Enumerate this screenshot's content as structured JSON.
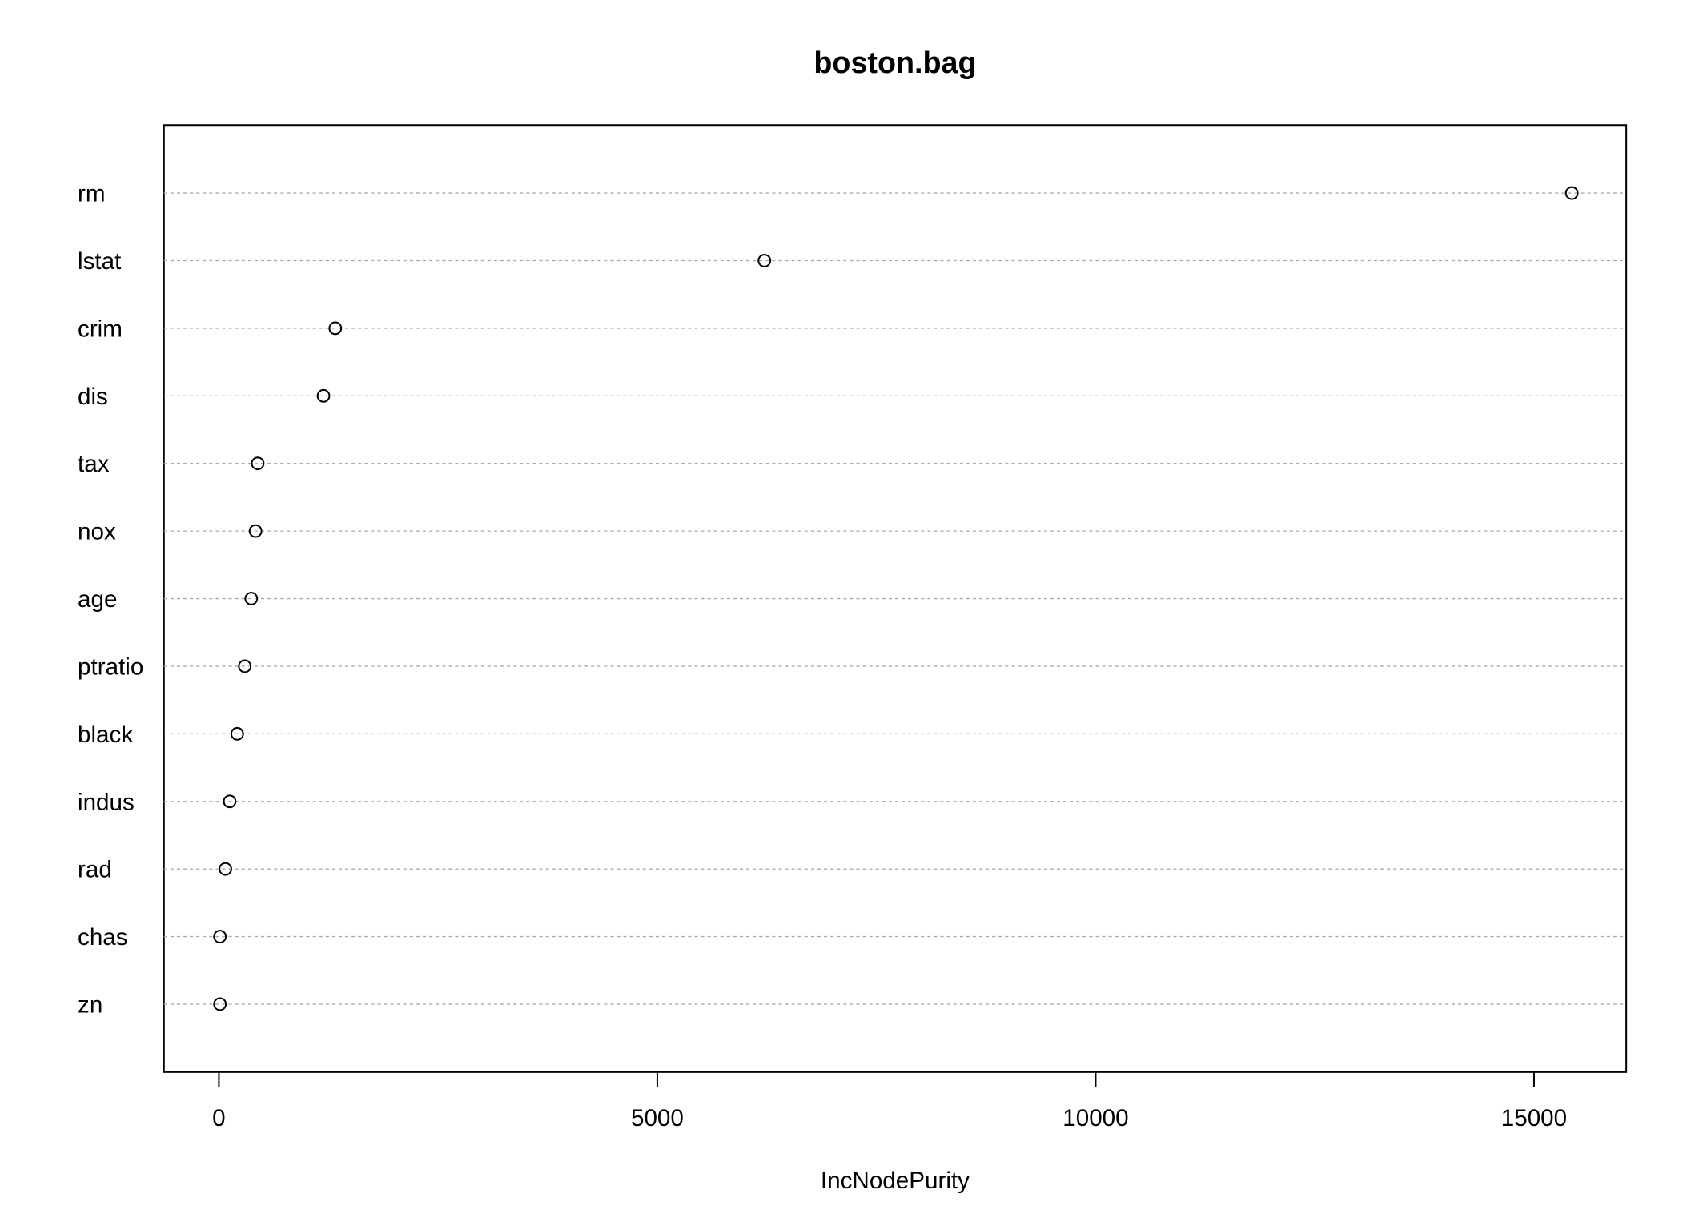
{
  "chart_data": {
    "type": "dot",
    "title": "boston.bag",
    "x_label": "IncNodePurity",
    "categories": [
      "rm",
      "lstat",
      "crim",
      "dis",
      "tax",
      "nox",
      "age",
      "ptratio",
      "black",
      "indus",
      "rad",
      "chas",
      "zn"
    ],
    "values": [
      15431,
      6222,
      1328,
      1193,
      443,
      418,
      369,
      295,
      209,
      123,
      74,
      12,
      12
    ],
    "color": "#000000",
    "xlim": [
      -627,
      16052
    ],
    "xticks": [
      0,
      5000,
      10000,
      15000
    ],
    "grid": true
  }
}
